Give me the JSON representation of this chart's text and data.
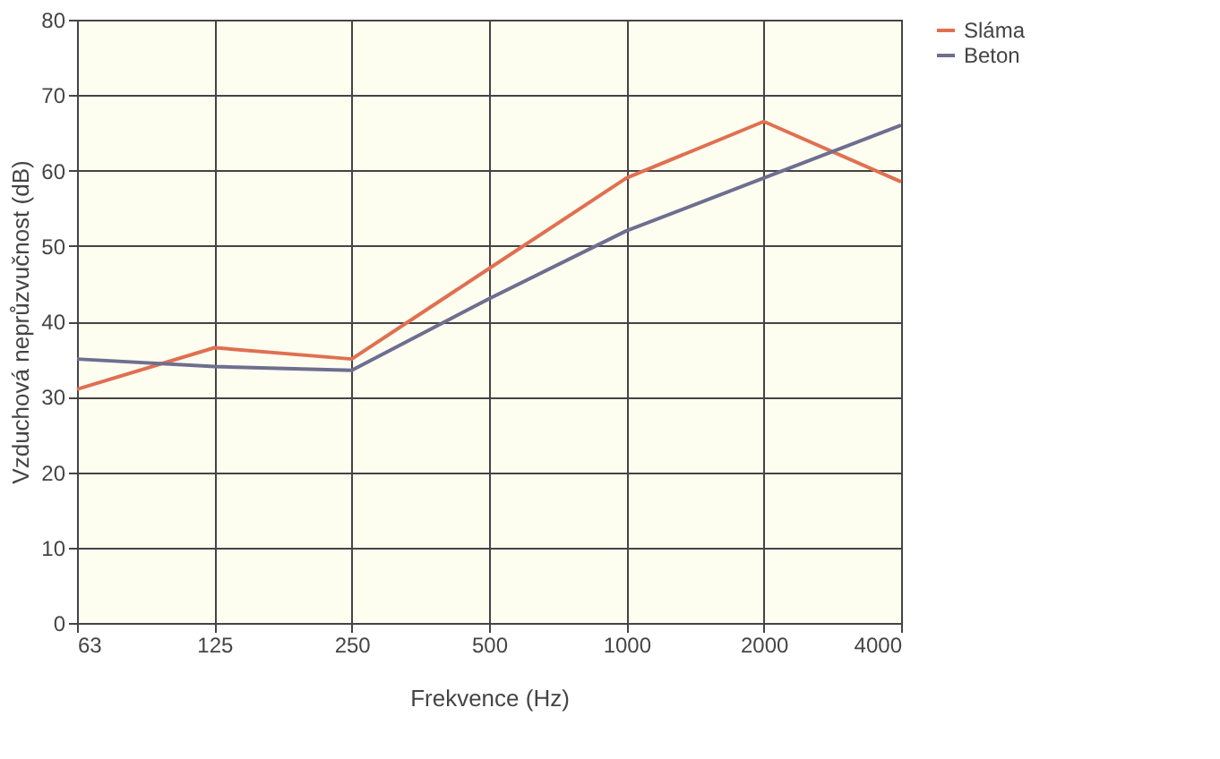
{
  "chart_data": {
    "type": "line",
    "xlabel": "Frekvence (Hz)",
    "ylabel": "Vzduchová neprůzvučnost (dB)",
    "categories": [
      "63",
      "125",
      "250",
      "500",
      "1000",
      "2000",
      "4000"
    ],
    "series": [
      {
        "name": "Sláma",
        "color": "#e07050",
        "values": [
          31,
          36.5,
          35,
          47,
          59,
          66.5,
          58.5
        ]
      },
      {
        "name": "Beton",
        "color": "#6e6e90",
        "values": [
          35,
          34,
          33.5,
          43,
          52,
          59,
          66
        ]
      }
    ],
    "ylim": [
      0,
      80
    ],
    "yticks": [
      0,
      10,
      20,
      30,
      40,
      50,
      60,
      70,
      80
    ],
    "grid": true,
    "legend": "right",
    "marker": "none",
    "line_style": "solid"
  }
}
